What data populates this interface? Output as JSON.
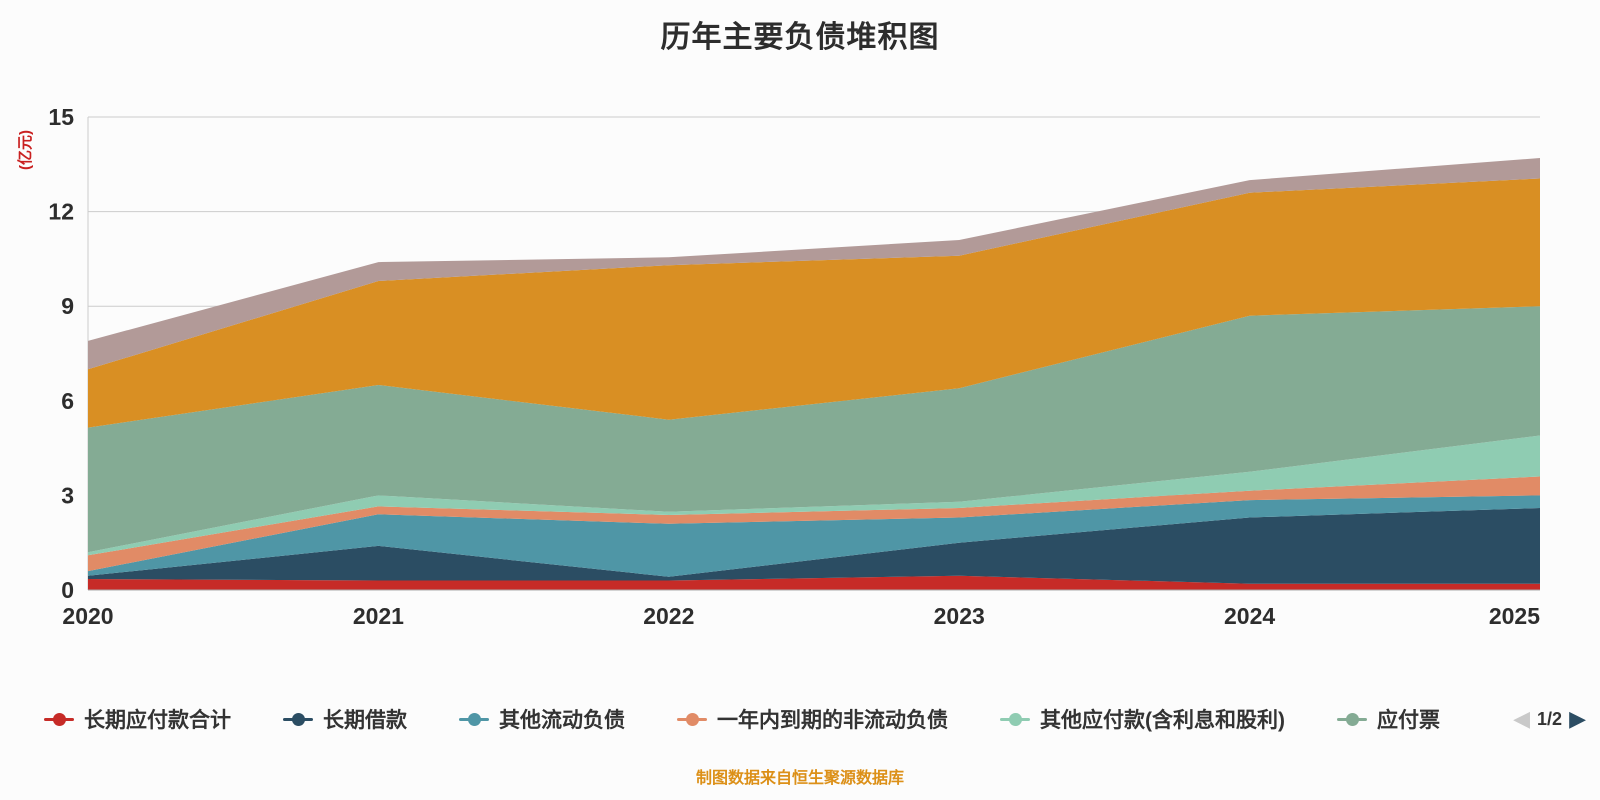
{
  "title": "历年主要负债堆积图",
  "footer_note": "制图数据来自恒生聚源数据库",
  "colors": {
    "background": "#fcfcfc",
    "title_text": "#2d2d2d",
    "axis_text": "#2d2d2d",
    "grid_line": "#cccccc",
    "y_unit_text": "#c92020",
    "legend_text": "#333333",
    "footer_text": "#dc9018",
    "pager_prev_arrow": "#c9c9c9",
    "pager_next_arrow": "#2c4d63"
  },
  "legend": {
    "page_indicator": "1/2",
    "prev_icon": "◀",
    "next_icon": "▶",
    "items": [
      {
        "label": "长期应付款合计",
        "color": "#c62b27"
      },
      {
        "label": "长期借款",
        "color": "#2b4d63"
      },
      {
        "label": "其他流动负债",
        "color": "#4f96a6"
      },
      {
        "label": "一年内到期的非流动负债",
        "color": "#e18b66"
      },
      {
        "label": "其他应付款(含利息和股利)",
        "color": "#8fccb2"
      },
      {
        "label": "应付票",
        "color": "#84ab94"
      }
    ]
  },
  "chart_data": {
    "type": "area",
    "stacked": true,
    "title": "历年主要负债堆积图",
    "ylabel": "(亿元)",
    "xlabel": "",
    "grid": true,
    "legend_position": "bottom",
    "x": [
      2020,
      2021,
      2022,
      2023,
      2024,
      2025
    ],
    "ylim": [
      0,
      15
    ],
    "yticks": [
      0,
      3,
      6,
      9,
      12,
      15
    ],
    "series": [
      {
        "name": "长期应付款合计",
        "color": "#c62b27",
        "legend_visible": true,
        "values": [
          0.35,
          0.3,
          0.3,
          0.45,
          0.2,
          0.2
        ]
      },
      {
        "name": "长期借款",
        "color": "#2b4d63",
        "legend_visible": true,
        "values": [
          0.1,
          1.1,
          0.12,
          1.05,
          2.1,
          2.4
        ]
      },
      {
        "name": "其他流动负债",
        "color": "#4f96a6",
        "legend_visible": true,
        "values": [
          0.15,
          1.0,
          1.68,
          0.8,
          0.55,
          0.4
        ]
      },
      {
        "name": "一年内到期的非流动负债",
        "color": "#e18b66",
        "legend_visible": true,
        "values": [
          0.5,
          0.25,
          0.28,
          0.3,
          0.3,
          0.6
        ]
      },
      {
        "name": "其他应付款(含利息和股利)",
        "color": "#8fccb2",
        "legend_visible": true,
        "values": [
          0.1,
          0.35,
          0.1,
          0.2,
          0.6,
          1.3
        ]
      },
      {
        "name": "应付票",
        "color": "#84ab94",
        "legend_visible": true,
        "values": [
          3.95,
          3.5,
          2.92,
          3.6,
          4.95,
          4.1
        ]
      },
      {
        "name": "",
        "color": "#d98f23",
        "legend_visible": false,
        "values": [
          1.85,
          3.3,
          4.9,
          4.2,
          3.9,
          4.05
        ]
      },
      {
        "name": "",
        "color": "#b29a98",
        "legend_visible": false,
        "values": [
          0.9,
          0.6,
          0.25,
          0.5,
          0.4,
          0.65
        ]
      }
    ]
  }
}
